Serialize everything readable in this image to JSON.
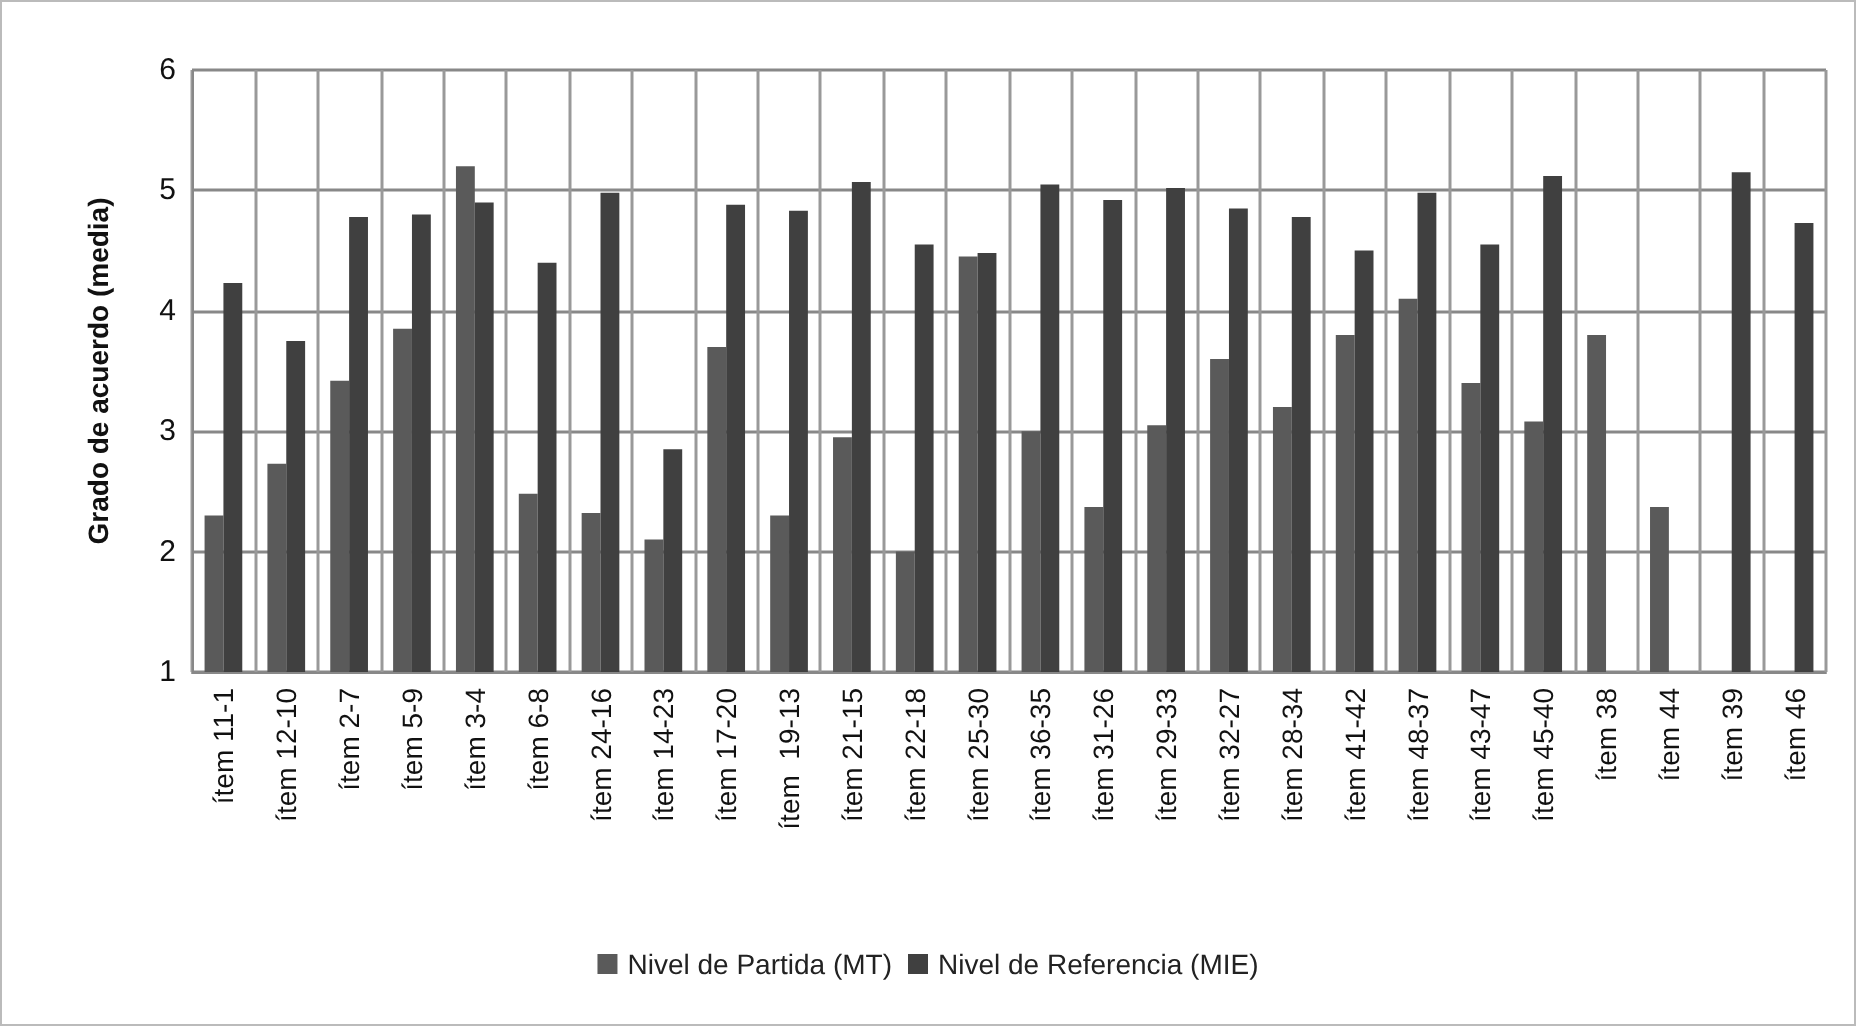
{
  "chart_data": {
    "type": "bar",
    "ylabel": "Grado de acuerdo (media)",
    "categories": [
      "ítem 11-1",
      "ítem 12-10",
      "ítem 2-7",
      "ítem 5-9",
      "ítem 3-4",
      "ítem 6-8",
      "ítem 24-16",
      "ítem 14-23",
      "ítem 17-20",
      "ítem  19-13",
      "ítem 21-15",
      "ítem 22-18",
      "ítem 25-30",
      "ítem 36-35",
      "ítem 31-26",
      "ítem 29-33",
      "ítem 32-27",
      "ítem 28-34",
      "ítem 41-42",
      "ítem 48-37",
      "ítem 43-47",
      "ítem 45-40",
      "ítem 38",
      "ítem 44",
      "ítem 39",
      "ítem 46"
    ],
    "series": [
      {
        "name": "Nivel de Partida (MT)",
        "color": "#5a5a5a",
        "values": [
          2.3,
          2.73,
          3.42,
          3.85,
          5.2,
          2.48,
          2.32,
          2.1,
          3.7,
          2.3,
          2.95,
          2.0,
          4.45,
          3.0,
          2.37,
          3.05,
          3.6,
          3.2,
          3.8,
          4.1,
          3.4,
          3.08,
          3.8,
          2.37,
          null,
          null
        ]
      },
      {
        "name": "Nivel de Referencia (MIE)",
        "color": "#404040",
        "values": [
          4.23,
          3.75,
          4.78,
          4.8,
          4.9,
          4.4,
          4.98,
          2.85,
          4.88,
          4.83,
          5.07,
          4.55,
          4.48,
          5.05,
          4.92,
          5.02,
          4.85,
          4.78,
          4.5,
          4.98,
          4.55,
          5.12,
          null,
          null,
          5.15,
          4.73
        ]
      }
    ],
    "ylim": [
      1,
      6
    ],
    "yticks": [
      1,
      2,
      3,
      4,
      5,
      6
    ],
    "grid": true,
    "legend": "bottom"
  }
}
